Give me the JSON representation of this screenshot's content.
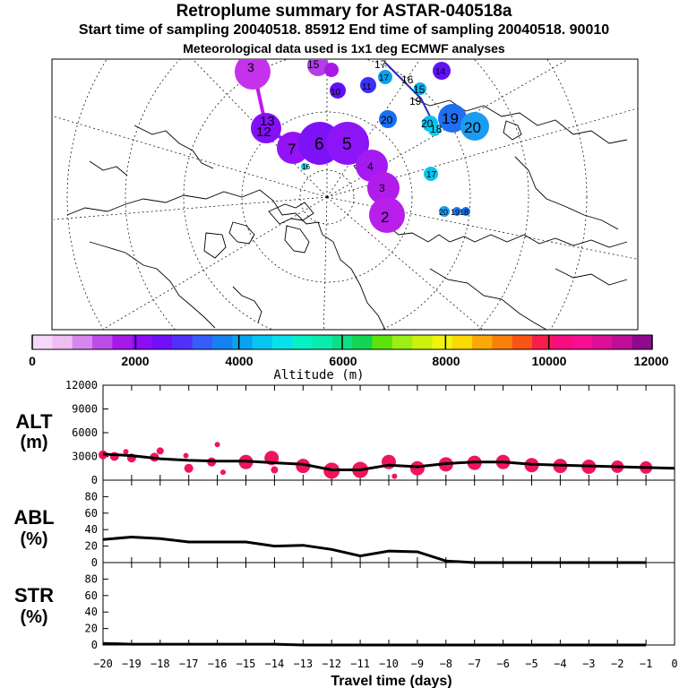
{
  "header": {
    "title": "Retroplume summary for ASTAR-040518a",
    "sampling": "Start time of sampling 20040518. 85912     End time of sampling 20040518. 90010",
    "met": "Meteorological data used is 1x1 deg ECMWF analyses"
  },
  "colorbar": {
    "label": "Altitude (m)",
    "ticks": [
      "0",
      "2000",
      "4000",
      "6000",
      "8000",
      "10000",
      "12000"
    ],
    "colors": [
      "#f5d8f7",
      "#eebdf3",
      "#d887ef",
      "#be4de8",
      "#a818e8",
      "#8d0bf5",
      "#6f10f8",
      "#5230fa",
      "#365df8",
      "#1880f0",
      "#07a3ef",
      "#05c7f1",
      "#08e1e9",
      "#06f1c6",
      "#09ecae",
      "#0be088",
      "#12d653",
      "#5de30c",
      "#9ded16",
      "#cdf00f",
      "#f0f40e",
      "#fbd904",
      "#fba809",
      "#fa7f0c",
      "#f95416",
      "#f81d4c",
      "#f70c7f",
      "#f50d92",
      "#dd0e97",
      "#be0d96",
      "#8e0a8e"
    ]
  },
  "map": {
    "labels": [
      "3",
      "15",
      "17",
      "16",
      "15",
      "19",
      "20",
      "10",
      "11",
      "17",
      "14",
      "20",
      "18",
      "19",
      "20",
      "13",
      "12",
      "7",
      "6",
      "5",
      "4",
      "3",
      "2",
      "16",
      "17",
      "20",
      "19",
      "18"
    ]
  },
  "chart_data": [
    {
      "type": "line",
      "name": "ALT",
      "ylabel": "ALT (m)",
      "ylim": [
        0,
        12000
      ],
      "yticks": [
        0,
        3000,
        6000,
        9000,
        12000
      ],
      "x": [
        -20,
        -19,
        -18,
        -17,
        -16,
        -15,
        -14,
        -13,
        -12,
        -11,
        -10,
        -9,
        -8,
        -7,
        -6,
        -5,
        -4,
        -3,
        -2,
        -1,
        0
      ],
      "values": [
        3300,
        3100,
        2700,
        2500,
        2400,
        2400,
        2200,
        2000,
        1300,
        1300,
        1900,
        1700,
        2100,
        2300,
        2300,
        2000,
        1900,
        1800,
        1700,
        1600,
        1500
      ],
      "dots": [
        {
          "x": -20,
          "y": 3200,
          "r": 5
        },
        {
          "x": -19.6,
          "y": 3000,
          "r": 5
        },
        {
          "x": -19.2,
          "y": 3600,
          "r": 3
        },
        {
          "x": -19,
          "y": 2800,
          "r": 5
        },
        {
          "x": -18.2,
          "y": 2900,
          "r": 5
        },
        {
          "x": -18,
          "y": 3700,
          "r": 4
        },
        {
          "x": -17.1,
          "y": 3100,
          "r": 3
        },
        {
          "x": -17,
          "y": 1500,
          "r": 5
        },
        {
          "x": -16.2,
          "y": 2300,
          "r": 5
        },
        {
          "x": -16,
          "y": 4500,
          "r": 3
        },
        {
          "x": -15.8,
          "y": 1000,
          "r": 3
        },
        {
          "x": -15,
          "y": 2300,
          "r": 8
        },
        {
          "x": -14.1,
          "y": 2800,
          "r": 8
        },
        {
          "x": -14,
          "y": 1300,
          "r": 4
        },
        {
          "x": -13,
          "y": 1800,
          "r": 8
        },
        {
          "x": -12,
          "y": 1200,
          "r": 9
        },
        {
          "x": -11,
          "y": 1300,
          "r": 9
        },
        {
          "x": -10,
          "y": 2300,
          "r": 8
        },
        {
          "x": -9.8,
          "y": 500,
          "r": 3
        },
        {
          "x": -9,
          "y": 1500,
          "r": 8
        },
        {
          "x": -8,
          "y": 2000,
          "r": 8
        },
        {
          "x": -7,
          "y": 2200,
          "r": 8
        },
        {
          "x": -6,
          "y": 2300,
          "r": 8
        },
        {
          "x": -5,
          "y": 1900,
          "r": 8
        },
        {
          "x": -4,
          "y": 1800,
          "r": 8
        },
        {
          "x": -3,
          "y": 1700,
          "r": 8
        },
        {
          "x": -2,
          "y": 1700,
          "r": 7
        },
        {
          "x": -1,
          "y": 1600,
          "r": 7
        }
      ]
    },
    {
      "type": "line",
      "name": "ABL",
      "ylabel": "ABL (%)",
      "ylim": [
        0,
        100
      ],
      "yticks": [
        0,
        20,
        40,
        60,
        80
      ],
      "x": [
        -20,
        -19,
        -18,
        -17,
        -16,
        -15,
        -14,
        -13,
        -12,
        -11,
        -10,
        -9,
        -8,
        -7,
        -6,
        -5,
        -4,
        -3,
        -2,
        -1
      ],
      "values": [
        28,
        31,
        29,
        25,
        25,
        25,
        20,
        21,
        16,
        8,
        14,
        13,
        2,
        0,
        0,
        0,
        0,
        0,
        0,
        0
      ]
    },
    {
      "type": "line",
      "name": "STR",
      "ylabel": "STR (%)",
      "ylim": [
        0,
        100
      ],
      "yticks": [
        0,
        20,
        40,
        60,
        80
      ],
      "x": [
        -20,
        -19,
        -18,
        -17,
        -16,
        -15,
        -14,
        -13,
        -12,
        -11,
        -10,
        -9,
        -8,
        -7,
        -6,
        -5,
        -4,
        -3,
        -2,
        -1
      ],
      "values": [
        2,
        1,
        1,
        1,
        1,
        1,
        1,
        0,
        0,
        0,
        0,
        0,
        0,
        0,
        0,
        0,
        0,
        0,
        0,
        0
      ]
    }
  ],
  "xaxis": {
    "label": "Travel time (days)",
    "ticks": [
      "−20",
      "−19",
      "−18",
      "−17",
      "−16",
      "−15",
      "−14",
      "−13",
      "−12",
      "−11",
      "−10",
      "−9",
      "−8",
      "−7",
      "−6",
      "−5",
      "−4",
      "−3",
      "−2",
      "−1",
      "0"
    ]
  }
}
